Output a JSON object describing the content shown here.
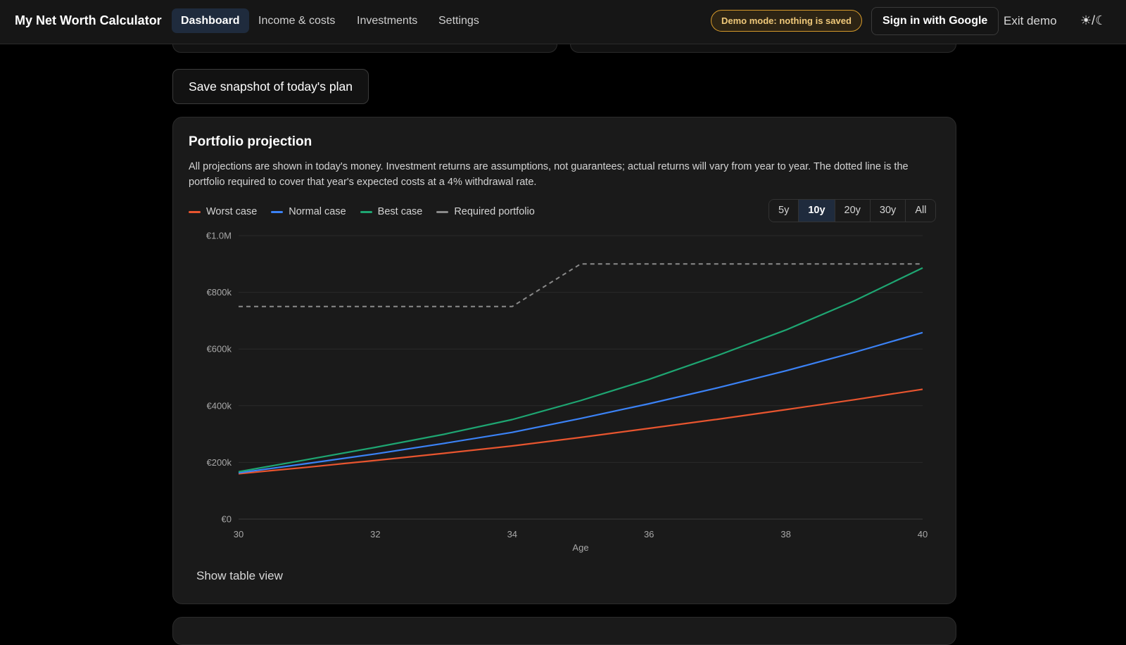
{
  "nav": {
    "brand": "My Net Worth Calculator",
    "links": [
      {
        "label": "Dashboard",
        "active": true
      },
      {
        "label": "Income & costs",
        "active": false
      },
      {
        "label": "Investments",
        "active": false
      },
      {
        "label": "Settings",
        "active": false
      }
    ],
    "demo_badge": "Demo mode: nothing is saved",
    "signin_label": "Sign in with Google",
    "exit_label": "Exit demo",
    "theme_toggle": "☀/☾"
  },
  "snapshot_button": "Save snapshot of today's plan",
  "projection": {
    "title": "Portfolio projection",
    "description": "All projections are shown in today's money. Investment returns are assumptions, not guarantees; actual returns will vary from year to year. The dotted line is the portfolio required to cover that year's expected costs at a 4% withdrawal rate.",
    "legend": [
      {
        "label": "Worst case",
        "color": "#e8552f"
      },
      {
        "label": "Normal case",
        "color": "#3b82f6"
      },
      {
        "label": "Best case",
        "color": "#1ea672"
      },
      {
        "label": "Required portfolio",
        "color": "#8a8a8a"
      }
    ],
    "ranges": [
      {
        "label": "5y",
        "active": false
      },
      {
        "label": "10y",
        "active": true
      },
      {
        "label": "20y",
        "active": false
      },
      {
        "label": "30y",
        "active": false
      },
      {
        "label": "All",
        "active": false
      }
    ],
    "show_table_label": "Show table view"
  },
  "chart_data": {
    "type": "line",
    "xlabel": "Age",
    "ylabel": "",
    "x": [
      30,
      31,
      32,
      33,
      34,
      35,
      36,
      37,
      38,
      39,
      40
    ],
    "xticks": [
      30,
      32,
      34,
      36,
      38,
      40
    ],
    "ylim": [
      0,
      1000000
    ],
    "yticks": [
      0,
      200000,
      400000,
      600000,
      800000,
      1000000
    ],
    "ytick_labels": [
      "€0",
      "€200k",
      "€400k",
      "€600k",
      "€800k",
      "€1.0M"
    ],
    "grid": true,
    "legend_position": "top-left",
    "series": [
      {
        "name": "Worst case",
        "color": "#e8552f",
        "dashed": false,
        "values": [
          160000,
          183000,
          207000,
          232000,
          258000,
          288000,
          320000,
          352000,
          386000,
          421000,
          458000
        ]
      },
      {
        "name": "Normal case",
        "color": "#3b82f6",
        "dashed": false,
        "values": [
          163000,
          196000,
          230000,
          267000,
          306000,
          355000,
          407000,
          463000,
          523000,
          588000,
          658000
        ]
      },
      {
        "name": "Best case",
        "color": "#1ea672",
        "dashed": false,
        "values": [
          167000,
          210000,
          253000,
          299000,
          351000,
          418000,
          493000,
          577000,
          667000,
          770000,
          886000
        ]
      },
      {
        "name": "Required portfolio",
        "color": "#8a8a8a",
        "dashed": true,
        "values": [
          750000,
          750000,
          750000,
          750000,
          750000,
          900000,
          900000,
          900000,
          900000,
          900000,
          900000
        ]
      }
    ]
  }
}
